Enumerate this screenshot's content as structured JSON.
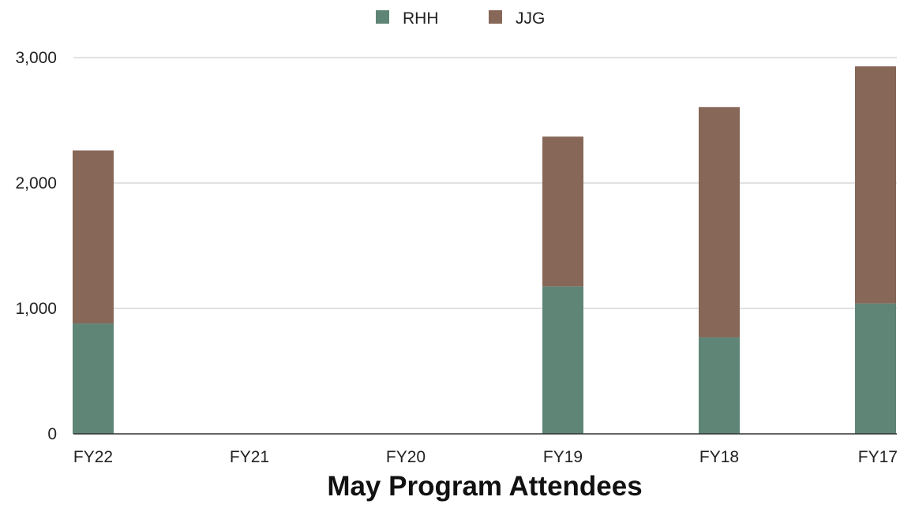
{
  "chart_data": {
    "type": "bar",
    "stacked": true,
    "categories": [
      "FY22",
      "FY21",
      "FY20",
      "FY19",
      "FY18",
      "FY17"
    ],
    "series": [
      {
        "name": "RHH",
        "color": "#5f8577",
        "values": [
          880,
          0,
          0,
          1175,
          770,
          1040
        ]
      },
      {
        "name": "JJG",
        "color": "#876758",
        "values": [
          1380,
          0,
          0,
          1195,
          1835,
          1890
        ]
      }
    ],
    "title": "",
    "xlabel": "May Program Attendees",
    "ylabel": "",
    "ylim": [
      0,
      3000
    ],
    "yticks": [
      0,
      1000,
      2000,
      3000
    ],
    "ytick_labels": [
      "0",
      "1,000",
      "2,000",
      "3,000"
    ],
    "grid": true,
    "legend_position": "top-center"
  }
}
